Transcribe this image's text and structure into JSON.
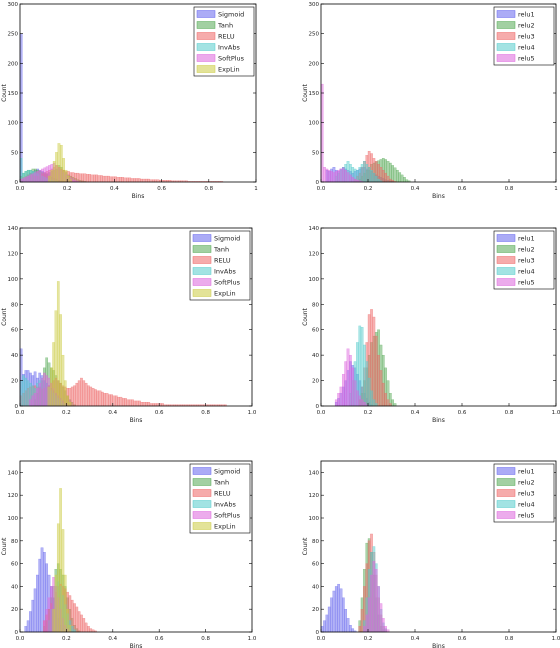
{
  "colors": {
    "blue": "#6666ee",
    "green": "#55aa55",
    "red": "#ee6666",
    "cyan": "#55cccc",
    "magenta": "#dd66dd",
    "olive": "#cccc44"
  },
  "chart_data": [
    {
      "type": "bar",
      "subtype": "histogram",
      "xlabel": "Bins",
      "ylabel": "Count",
      "xlim": [
        0,
        1
      ],
      "ylim": [
        0,
        300
      ],
      "xticks": [
        "0.0",
        "0.2",
        "0.4",
        "0.6",
        "0.8",
        "1"
      ],
      "yticks": [
        "0",
        "50",
        "100",
        "150",
        "200",
        "250",
        "300"
      ],
      "legend_position": "top-right",
      "bin_width": 0.01,
      "series": [
        {
          "name": "Sigmoid",
          "color": "blue",
          "start": 0.0,
          "values": [
            250,
            5,
            8,
            12,
            15,
            18,
            20,
            22,
            20,
            18,
            16,
            14,
            10,
            8,
            6,
            5,
            3,
            2,
            1,
            1
          ]
        },
        {
          "name": "Tanh",
          "color": "green",
          "start": 0.0,
          "values": [
            10,
            15,
            18,
            20,
            20,
            22,
            22,
            20,
            18,
            16,
            14,
            14,
            16,
            18,
            20,
            22,
            28,
            25,
            20,
            16,
            12,
            10,
            8,
            6,
            4,
            3,
            2,
            1
          ]
        },
        {
          "name": "RELU",
          "color": "red",
          "start": 0.0,
          "values": [
            5,
            8,
            10,
            12,
            14,
            12,
            10,
            10,
            12,
            14,
            16,
            18,
            20,
            22,
            25,
            28,
            25,
            22,
            20,
            18,
            18,
            16,
            16,
            15,
            15,
            14,
            14,
            14,
            13,
            13,
            12,
            12,
            12,
            11,
            11,
            10,
            10,
            10,
            9,
            9,
            9,
            8,
            8,
            8,
            7,
            7,
            7,
            6,
            6,
            6,
            6,
            5,
            5,
            5,
            5,
            4,
            4,
            4,
            4,
            3,
            3,
            3,
            3,
            3,
            2,
            2,
            2,
            2,
            2,
            2,
            2,
            1,
            1,
            1,
            1,
            1,
            1,
            1,
            1,
            1,
            1,
            1,
            1,
            1,
            1,
            1
          ]
        },
        {
          "name": "InvAbs",
          "color": "cyan",
          "start": 0.0,
          "values": [
            40,
            15,
            18,
            20,
            20,
            18,
            16,
            14,
            12,
            10,
            8,
            6,
            4,
            3,
            2,
            1
          ]
        },
        {
          "name": "SoftPlus",
          "color": "magenta",
          "start": 0.0,
          "values": [
            5,
            6,
            8,
            10,
            12,
            14,
            16,
            18,
            20,
            22,
            24,
            26,
            28,
            30,
            32,
            28,
            24,
            20,
            16,
            12,
            8,
            6,
            4,
            2,
            1
          ]
        },
        {
          "name": "ExpLin",
          "color": "olive",
          "start": 0.12,
          "values": [
            10,
            20,
            35,
            50,
            65,
            62,
            40,
            20,
            10,
            5
          ]
        }
      ]
    },
    {
      "type": "bar",
      "subtype": "histogram",
      "xlabel": "Bins",
      "ylabel": "Count",
      "xlim": [
        0,
        1
      ],
      "ylim": [
        0,
        300
      ],
      "xticks": [
        "0.0",
        "0.2",
        "0.4",
        "0.6",
        "0.8",
        "1"
      ],
      "yticks": [
        "0",
        "50",
        "100",
        "150",
        "200",
        "250",
        "300"
      ],
      "legend_position": "top-right",
      "bin_width": 0.01,
      "series": [
        {
          "name": "relu1",
          "color": "blue",
          "start": 0.02,
          "values": [
            20,
            18,
            22,
            25,
            20,
            18,
            22,
            25,
            22,
            20,
            18,
            15,
            18,
            20,
            22,
            24,
            25,
            22,
            20,
            18,
            15,
            12,
            10,
            8,
            6,
            4,
            3,
            2,
            1
          ]
        },
        {
          "name": "relu2",
          "color": "green",
          "start": 0.16,
          "values": [
            5,
            10,
            15,
            20,
            25,
            30,
            32,
            34,
            36,
            38,
            40,
            38,
            35,
            32,
            28,
            24,
            20,
            16,
            12,
            8,
            4,
            2
          ]
        },
        {
          "name": "relu3",
          "color": "red",
          "start": 0.14,
          "values": [
            5,
            10,
            15,
            25,
            35,
            45,
            52,
            48,
            40,
            35,
            30,
            25,
            20,
            15,
            10,
            5,
            3,
            1
          ]
        },
        {
          "name": "relu4",
          "color": "cyan",
          "start": 0.06,
          "values": [
            10,
            15,
            20,
            25,
            30,
            35,
            30,
            25,
            22,
            20,
            25,
            30,
            35,
            30,
            25,
            20,
            15,
            10,
            5,
            2
          ]
        },
        {
          "name": "relu5",
          "color": "magenta",
          "start": 0.0,
          "values": [
            165,
            25,
            22,
            20,
            18,
            16,
            18,
            20,
            22,
            24,
            20,
            16,
            12,
            8,
            5,
            3,
            2,
            1
          ]
        }
      ]
    },
    {
      "type": "bar",
      "subtype": "histogram",
      "xlabel": "Bins",
      "ylabel": "Count",
      "xlim": [
        0,
        1
      ],
      "ylim": [
        0,
        140
      ],
      "xticks": [
        "0.0",
        "0.2",
        "0.4",
        "0.6",
        "0.8",
        "1.0"
      ],
      "yticks": [
        "0",
        "20",
        "40",
        "60",
        "80",
        "100",
        "120",
        "140"
      ],
      "legend_position": "top-right",
      "bin_width": 0.01,
      "series": [
        {
          "name": "Sigmoid",
          "color": "blue",
          "start": 0.0,
          "values": [
            45,
            25,
            28,
            28,
            26,
            24,
            27,
            22,
            26,
            24,
            20,
            18,
            16,
            14,
            12,
            10,
            8,
            6,
            4,
            2,
            1
          ]
        },
        {
          "name": "Tanh",
          "color": "green",
          "start": 0.06,
          "values": [
            5,
            10,
            15,
            20,
            30,
            38,
            34,
            30,
            28,
            24,
            20,
            18,
            15,
            12,
            8,
            5,
            3,
            1
          ]
        },
        {
          "name": "RELU",
          "color": "red",
          "start": 0.0,
          "values": [
            8,
            10,
            12,
            14,
            15,
            16,
            16,
            15,
            14,
            13,
            14,
            15,
            16,
            18,
            20,
            22,
            20,
            18,
            16,
            15,
            14,
            14,
            15,
            16,
            18,
            20,
            22,
            20,
            18,
            16,
            15,
            14,
            13,
            12,
            12,
            11,
            10,
            10,
            9,
            9,
            8,
            8,
            7,
            7,
            6,
            6,
            5,
            5,
            5,
            4,
            4,
            4,
            3,
            3,
            3,
            3,
            2,
            2,
            2,
            2,
            2,
            2,
            1,
            1,
            1,
            1,
            1,
            1,
            1,
            1,
            1,
            1,
            1,
            1,
            1,
            1,
            1,
            1,
            1,
            1,
            1,
            1,
            1,
            1,
            1,
            1,
            1,
            1,
            1
          ]
        },
        {
          "name": "InvAbs",
          "color": "cyan",
          "start": 0.0,
          "values": [
            20,
            24,
            22,
            20,
            18,
            16,
            14,
            18,
            20,
            22,
            20,
            18,
            15,
            12,
            10,
            8,
            6,
            4,
            2,
            1
          ]
        },
        {
          "name": "SoftPlus",
          "color": "magenta",
          "start": 0.04,
          "values": [
            5,
            8,
            10,
            14,
            18,
            22,
            26,
            24,
            22,
            18,
            14,
            10,
            8,
            6,
            4,
            2,
            1
          ]
        },
        {
          "name": "ExpLin",
          "color": "olive",
          "start": 0.12,
          "values": [
            15,
            30,
            50,
            75,
            98,
            72,
            40,
            20,
            8,
            3
          ]
        }
      ]
    },
    {
      "type": "bar",
      "subtype": "histogram",
      "xlabel": "Bins",
      "ylabel": "Count",
      "xlim": [
        0,
        1
      ],
      "ylim": [
        0,
        140
      ],
      "xticks": [
        "0.0",
        "0.2",
        "0.4",
        "0.6",
        "0.8",
        "1.0"
      ],
      "yticks": [
        "0",
        "20",
        "40",
        "60",
        "80",
        "100",
        "120",
        "140"
      ],
      "legend_position": "top-right",
      "bin_width": 0.01,
      "series": [
        {
          "name": "relu1",
          "color": "blue",
          "start": 0.06,
          "values": [
            3,
            6,
            10,
            15,
            20,
            28,
            35,
            32,
            30,
            25,
            20,
            15,
            10,
            6,
            3,
            1
          ]
        },
        {
          "name": "relu2",
          "color": "green",
          "start": 0.16,
          "values": [
            5,
            10,
            20,
            30,
            40,
            50,
            55,
            58,
            60,
            48,
            40,
            30,
            20,
            10,
            5,
            2
          ]
        },
        {
          "name": "relu3",
          "color": "red",
          "start": 0.16,
          "values": [
            5,
            15,
            30,
            50,
            72,
            76,
            70,
            55,
            40,
            28,
            18,
            10,
            5,
            2
          ]
        },
        {
          "name": "relu4",
          "color": "cyan",
          "start": 0.12,
          "values": [
            10,
            20,
            35,
            50,
            63,
            62,
            48,
            35,
            22,
            12,
            5,
            2
          ]
        },
        {
          "name": "relu5",
          "color": "magenta",
          "start": 0.06,
          "values": [
            5,
            10,
            15,
            25,
            35,
            45,
            40,
            30,
            20,
            12,
            8,
            5,
            3,
            1
          ]
        }
      ]
    },
    {
      "type": "bar",
      "subtype": "histogram",
      "xlabel": "Bins",
      "ylabel": "Count",
      "xlim": [
        0,
        1
      ],
      "ylim": [
        0,
        150
      ],
      "xticks": [
        "0.0",
        "0.2",
        "0.4",
        "0.6",
        "0.8",
        "1.0"
      ],
      "yticks": [
        "0",
        "20",
        "40",
        "60",
        "80",
        "100",
        "120",
        "140"
      ],
      "legend_position": "top-right",
      "bin_width": 0.01,
      "series": [
        {
          "name": "Sigmoid",
          "color": "blue",
          "start": 0.02,
          "values": [
            5,
            10,
            18,
            28,
            38,
            50,
            64,
            74,
            70,
            60,
            50,
            40,
            30,
            20,
            12,
            6,
            3,
            1
          ]
        },
        {
          "name": "Tanh",
          "color": "green",
          "start": 0.1,
          "values": [
            5,
            10,
            20,
            30,
            40,
            55,
            60,
            55,
            50,
            40,
            30,
            20,
            12,
            6,
            3,
            1
          ]
        },
        {
          "name": "RELU",
          "color": "red",
          "start": 0.1,
          "values": [
            10,
            15,
            20,
            25,
            30,
            35,
            40,
            42,
            40,
            38,
            35,
            32,
            28,
            25,
            22,
            18,
            15,
            12,
            8,
            5,
            3,
            2,
            1
          ]
        },
        {
          "name": "InvAbs",
          "color": "cyan",
          "start": 0.12,
          "values": [
            10,
            20,
            30,
            40,
            44,
            40,
            32,
            24,
            16,
            10,
            5,
            2
          ]
        },
        {
          "name": "SoftPlus",
          "color": "magenta",
          "start": 0.1,
          "values": [
            10,
            20,
            30,
            40,
            48,
            40,
            30,
            20,
            12,
            6,
            3,
            1
          ]
        },
        {
          "name": "ExpLin",
          "color": "olive",
          "start": 0.14,
          "values": [
            20,
            50,
            95,
            126,
            90,
            50,
            20,
            6
          ]
        }
      ]
    },
    {
      "type": "bar",
      "subtype": "histogram",
      "xlabel": "Bins",
      "ylabel": "Count",
      "xlim": [
        0,
        1
      ],
      "ylim": [
        0,
        150
      ],
      "xticks": [
        "0.0",
        "0.2",
        "0.4",
        "0.6",
        "0.8",
        "1.0"
      ],
      "yticks": [
        "0",
        "20",
        "40",
        "60",
        "80",
        "100",
        "120",
        "140"
      ],
      "legend_position": "top-right",
      "bin_width": 0.01,
      "series": [
        {
          "name": "relu1",
          "color": "blue",
          "start": 0.0,
          "values": [
            5,
            10,
            15,
            22,
            30,
            36,
            40,
            42,
            38,
            30,
            20,
            12,
            6,
            3,
            1
          ]
        },
        {
          "name": "relu2",
          "color": "green",
          "start": 0.16,
          "values": [
            10,
            30,
            55,
            78,
            82,
            70,
            50,
            30,
            15,
            5,
            2
          ]
        },
        {
          "name": "relu3",
          "color": "red",
          "start": 0.16,
          "values": [
            5,
            20,
            40,
            60,
            80,
            86,
            70,
            50,
            30,
            15,
            5,
            2
          ]
        },
        {
          "name": "relu4",
          "color": "cyan",
          "start": 0.18,
          "values": [
            10,
            30,
            55,
            70,
            75,
            60,
            40,
            20,
            8,
            3
          ]
        },
        {
          "name": "relu5",
          "color": "magenta",
          "start": 0.18,
          "values": [
            5,
            15,
            30,
            50,
            62,
            55,
            40,
            25,
            12,
            5,
            2
          ]
        }
      ]
    }
  ]
}
